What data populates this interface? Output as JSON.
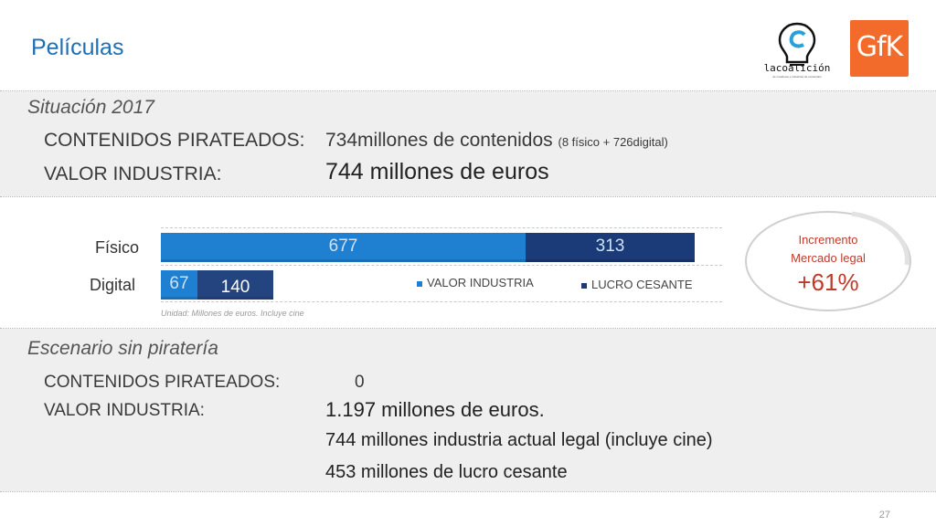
{
  "header": {
    "title": "Películas",
    "logo_coalicion_text": "lacoalición",
    "logo_coalicion_sub": "de creadores e industrias de contenidos",
    "logo_gfk_text": "GfK"
  },
  "situacion": {
    "heading": "Situación 2017",
    "row1_label": "CONTENIDOS PIRATEADOS:",
    "row1_value": "734millones de contenidos",
    "row1_note": "(8 físico + 726digital)",
    "row2_label": "VALOR INDUSTRIA:",
    "row2_value": "744 millones de euros"
  },
  "chart_data": {
    "type": "bar",
    "orientation": "horizontal",
    "stacked": true,
    "categories": [
      "Físico",
      "Digital"
    ],
    "series": [
      {
        "name": "VALOR INDUSTRIA",
        "color": "#1f7fd0",
        "values": [
          677,
          67
        ]
      },
      {
        "name": "LUCRO CESANTE",
        "color": "#1a3a78",
        "values": [
          313,
          140
        ]
      }
    ],
    "note": "Unidad: Millones de euros. Incluye cine",
    "xlim": [
      0,
      1040
    ],
    "legend_position": "bottom-right"
  },
  "badge": {
    "line1": "Incremento",
    "line2": "Mercado legal",
    "value": "+61%",
    "color": "#c0392b"
  },
  "escenario": {
    "heading": "Escenario sin piratería",
    "row1_label": "CONTENIDOS PIRATEADOS:",
    "row1_value": "0",
    "row2_label": "VALOR INDUSTRIA:",
    "row2_value": "1.197 millones de euros.",
    "line3": "744 millones industria actual legal (incluye cine)",
    "line4": "453 millones de lucro cesante"
  },
  "footer": {
    "page_number": "27"
  }
}
